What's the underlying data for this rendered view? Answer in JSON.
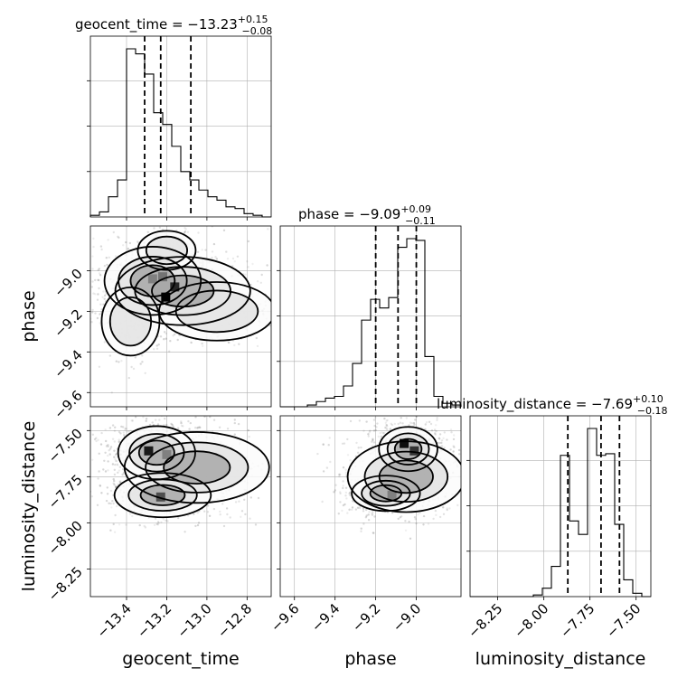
{
  "chart_data": {
    "type": "corner",
    "parameters": [
      {
        "key": "geocent_time",
        "label": "geocent_time",
        "range": [
          -13.58,
          -12.68
        ],
        "ticks": [
          -13.4,
          -13.2,
          -13.0,
          -12.8
        ],
        "tick_labels": [
          "−13.4",
          "−13.2",
          "−13.0",
          "−12.8"
        ],
        "title_main": "geocent_time = −13.23",
        "title_plus": "+0.15",
        "title_minus": "−0.08",
        "quantiles": [
          -13.31,
          -13.23,
          -13.08
        ],
        "hist_edges_start": -13.58,
        "hist_bin_width": 0.045,
        "hist_counts": [
          1,
          3,
          12,
          22,
          100,
          97,
          85,
          62,
          55,
          42,
          27,
          22,
          16,
          12,
          10,
          6,
          5,
          2,
          1,
          0
        ]
      },
      {
        "key": "phase",
        "label": "phase",
        "range": [
          -9.67,
          -8.78
        ],
        "ticks": [
          -9.6,
          -9.4,
          -9.2,
          -9.0
        ],
        "tick_labels": [
          "−9.6",
          "−9.4",
          "−9.2",
          "−9.0"
        ],
        "title_main": "phase = −9.09",
        "title_plus": "+0.09",
        "title_minus": "−0.11",
        "quantiles": [
          -9.2,
          -9.09,
          -9.0
        ],
        "hist_edges_start": -9.67,
        "hist_bin_width": 0.0445,
        "hist_counts": [
          0,
          0,
          0,
          1,
          3,
          5,
          6,
          12,
          25,
          50,
          62,
          57,
          63,
          92,
          97,
          96,
          29,
          6,
          2,
          1
        ]
      },
      {
        "key": "luminosity_distance",
        "label": "luminosity_distance",
        "range": [
          -8.4,
          -7.42
        ],
        "ticks": [
          -8.25,
          -8.0,
          -7.75,
          -7.5
        ],
        "tick_labels": [
          "−8.25",
          "−8.00",
          "−7.75",
          "−7.50"
        ],
        "title_main": "luminosity_distance = −7.69",
        "title_plus": "+0.10",
        "title_minus": "−0.18",
        "quantiles": [
          -7.87,
          -7.69,
          -7.59
        ],
        "hist_edges_start": -8.4,
        "hist_bin_width": 0.049,
        "hist_counts": [
          0,
          0,
          0,
          0,
          0,
          0,
          0,
          1,
          5,
          18,
          84,
          45,
          37,
          100,
          84,
          85,
          43,
          10,
          2,
          0
        ]
      }
    ],
    "pairs": [
      {
        "x": "geocent_time",
        "y": "phase",
        "yticks": [
          -9.6,
          -9.4,
          -9.2,
          -9.0
        ],
        "ytick_labels": [
          "−9.6",
          "−9.4",
          "−9.2",
          "−9.0"
        ],
        "ylim": [
          -9.67,
          -8.78
        ],
        "clusters": [
          {
            "center": [
              -13.27,
              -9.05
            ],
            "spread": [
              0.1,
              0.07
            ],
            "weight": 0.35
          },
          {
            "center": [
              -13.12,
              -9.1
            ],
            "spread": [
              0.14,
              0.07
            ],
            "weight": 0.25
          },
          {
            "center": [
              -12.95,
              -9.2
            ],
            "spread": [
              0.12,
              0.06
            ],
            "weight": 0.18
          },
          {
            "center": [
              -13.38,
              -9.25
            ],
            "spread": [
              0.06,
              0.07
            ],
            "weight": 0.14
          },
          {
            "center": [
              -13.2,
              -8.9
            ],
            "spread": [
              0.06,
              0.04
            ],
            "weight": 0.08
          }
        ],
        "dense_cells": [
          {
            "x": -13.205,
            "y": -9.13,
            "level": 1.0
          },
          {
            "x": -13.16,
            "y": -9.08,
            "level": 0.85
          },
          {
            "x": -13.27,
            "y": -9.04,
            "level": 0.5
          },
          {
            "x": -13.22,
            "y": -9.03,
            "level": 0.55
          }
        ]
      },
      {
        "x": "geocent_time",
        "y": "luminosity_distance",
        "yticks": [
          -8.25,
          -8.0,
          -7.75,
          -7.5
        ],
        "ytick_labels": [
          "−8.25",
          "−8.00",
          "−7.75",
          "−7.50"
        ],
        "ylim": [
          -8.4,
          -7.42
        ],
        "clusters": [
          {
            "center": [
              -13.25,
              -7.62
            ],
            "spread": [
              0.08,
              0.06
            ],
            "weight": 0.45
          },
          {
            "center": [
              -13.22,
              -7.85
            ],
            "spread": [
              0.1,
              0.05
            ],
            "weight": 0.3
          },
          {
            "center": [
              -13.05,
              -7.7
            ],
            "spread": [
              0.15,
              0.08
            ],
            "weight": 0.25
          }
        ],
        "dense_cells": [
          {
            "x": -13.29,
            "y": -7.61,
            "level": 0.9
          },
          {
            "x": -13.23,
            "y": -7.86,
            "level": 0.7
          },
          {
            "x": -13.2,
            "y": -7.63,
            "level": 0.5
          }
        ]
      },
      {
        "x": "phase",
        "y": "luminosity_distance",
        "yticks": [
          -8.25,
          -8.0,
          -7.75,
          -7.5
        ],
        "ytick_labels": [
          "−8.25",
          "−8.00",
          "−7.75",
          "−7.50"
        ],
        "ylim": [
          -8.4,
          -7.42
        ],
        "clusters": [
          {
            "center": [
              -9.04,
              -7.6
            ],
            "spread": [
              0.06,
              0.05
            ],
            "weight": 0.45
          },
          {
            "center": [
              -9.15,
              -7.84
            ],
            "spread": [
              0.07,
              0.04
            ],
            "weight": 0.3
          },
          {
            "center": [
              -9.05,
              -7.75
            ],
            "spread": [
              0.12,
              0.08
            ],
            "weight": 0.25
          }
        ],
        "dense_cells": [
          {
            "x": -9.06,
            "y": -7.57,
            "level": 0.95
          },
          {
            "x": -9.01,
            "y": -7.61,
            "level": 0.8
          },
          {
            "x": -9.12,
            "y": -7.85,
            "level": 0.5
          }
        ]
      }
    ],
    "contour_levels": [
      "0.5",
      "1.0",
      "1.5",
      "2.0"
    ],
    "grid": true,
    "colors": {
      "line": "#000000",
      "grid": "#b0b0b0",
      "points": "#000000"
    }
  }
}
